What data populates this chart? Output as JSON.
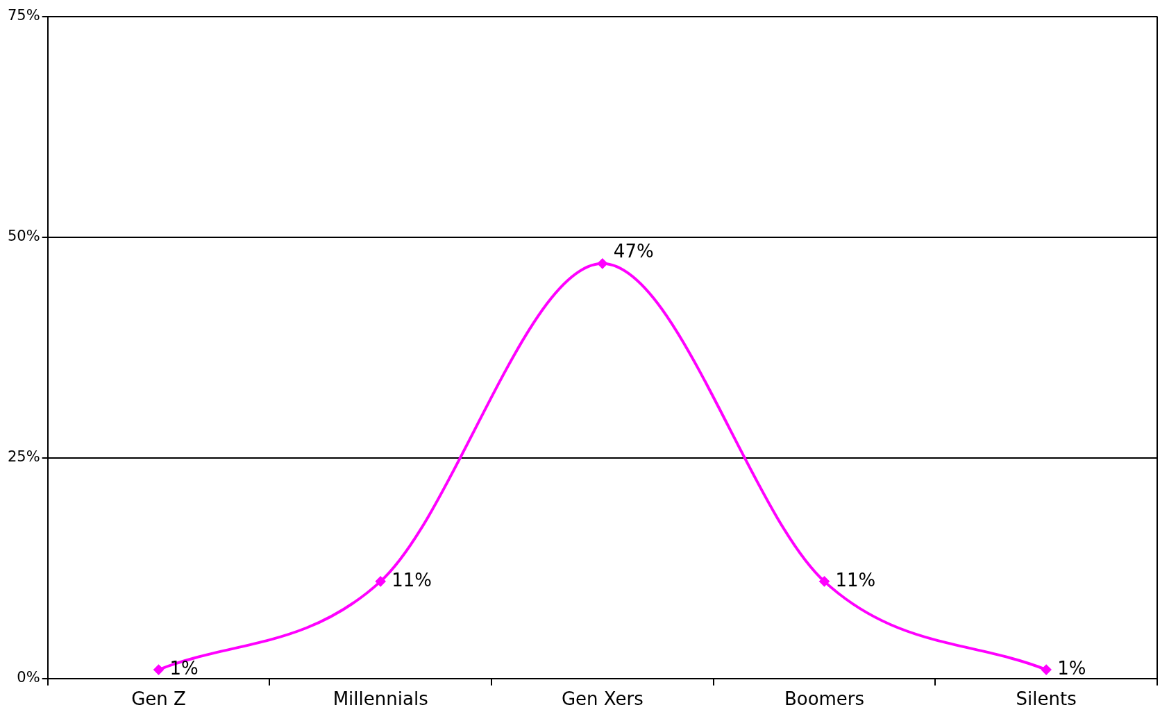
{
  "chart_data": {
    "type": "line",
    "categories": [
      "Gen Z",
      "Millennials",
      "Gen Xers",
      "Boomers",
      "Silents"
    ],
    "series": [
      {
        "color": "#ff00ff",
        "values": [
          1,
          11,
          47,
          11,
          1
        ],
        "value_labels": [
          "1%",
          "11%",
          "47%",
          "11%",
          "1%"
        ]
      }
    ],
    "ylim": [
      0,
      75
    ],
    "yticks": [
      {
        "value": 0,
        "label": "0%"
      },
      {
        "value": 25,
        "label": "25%"
      },
      {
        "value": 50,
        "label": "50%"
      },
      {
        "value": 75,
        "label": "75%"
      }
    ],
    "grid": "y",
    "legend": false,
    "marker": "diamond",
    "line_style": "solid"
  }
}
